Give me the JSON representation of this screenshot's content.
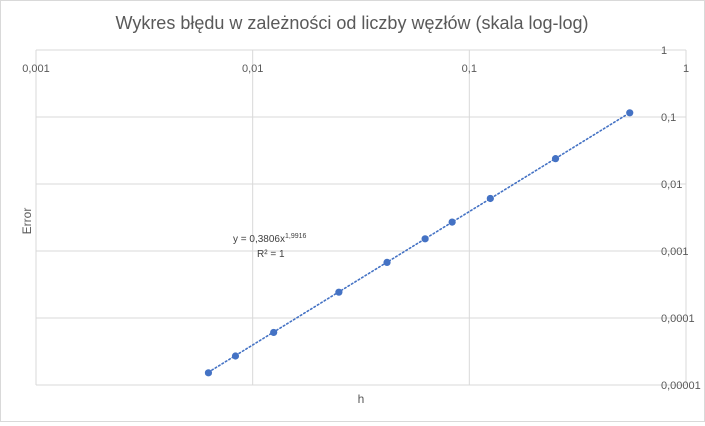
{
  "chart_data": {
    "type": "scatter",
    "title": "Wykres błędu w zależności od liczby węzłów (skala log-log)",
    "xlabel": "h",
    "ylabel": "Error",
    "x_scale": "log",
    "y_scale": "log",
    "xlim": [
      0.001,
      1
    ],
    "ylim": [
      1e-05,
      1
    ],
    "x_ticks": [
      "0,001",
      "0,01",
      "0,1",
      "1"
    ],
    "y_ticks": [
      "1",
      "0,1",
      "0,01",
      "0,001",
      "0,0001",
      "0,00001"
    ],
    "x_axis_position": "top",
    "y_axis_position": "right",
    "grid": true,
    "legend": "none",
    "series": [
      {
        "color": "#4472c4",
        "x": [
          0.00625,
          0.00833,
          0.0125,
          0.025,
          0.0417,
          0.0625,
          0.0833,
          0.125,
          0.25,
          0.55
        ],
        "y": [
          1.52e-05,
          2.71e-05,
          6.09e-05,
          0.000243,
          0.000676,
          0.00152,
          0.0027,
          0.00608,
          0.0239,
          0.1155
        ]
      }
    ],
    "trendline": {
      "type": "power",
      "style": "dotted",
      "color": "#4472c4",
      "coefficient": 0.3806,
      "exponent": 1.9916,
      "equation_prefix": "y = 0,3806x",
      "equation_exponent": "1,9916",
      "r_squared": "R² = 1"
    }
  }
}
